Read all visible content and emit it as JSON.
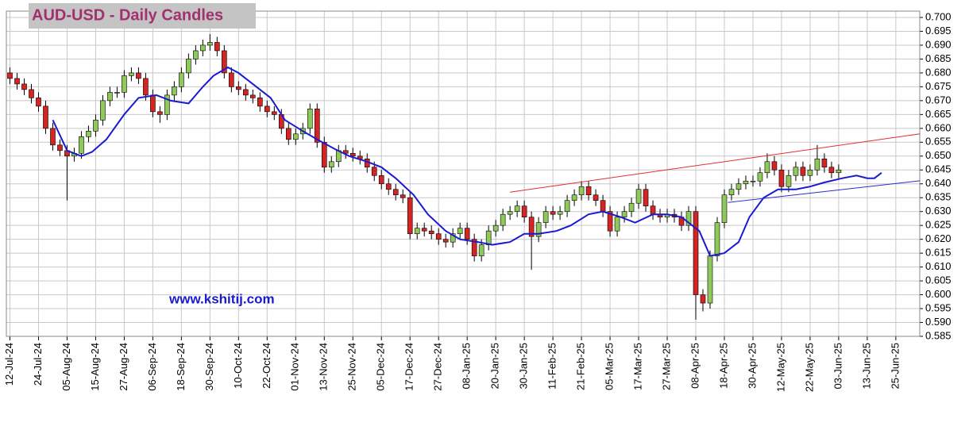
{
  "chart_data": {
    "type": "candlestick",
    "title": "AUD-USD - Daily Candles",
    "annotation": "www.kshitij.com",
    "x": [
      0,
      2,
      4,
      6,
      8,
      10,
      12,
      14,
      16,
      18,
      20,
      22,
      24,
      26,
      28,
      30,
      32,
      34,
      36,
      38,
      40,
      42,
      44,
      46,
      48,
      50,
      52,
      54,
      56,
      58,
      60,
      62,
      64,
      66,
      68,
      70,
      72,
      74,
      76,
      78,
      80,
      82,
      84,
      86,
      88,
      90,
      92,
      94,
      96,
      98,
      100,
      102,
      104,
      106,
      108,
      110,
      112,
      114,
      116,
      118,
      120,
      122,
      124,
      126,
      128,
      130,
      132,
      134,
      136,
      138,
      140,
      142,
      144,
      146,
      148,
      150,
      152,
      154,
      156,
      158,
      160,
      162,
      164,
      166,
      168,
      170,
      172,
      174,
      176,
      178,
      180,
      182,
      184,
      186,
      188,
      190,
      192,
      194,
      196,
      198,
      200,
      202,
      204,
      206,
      208,
      210,
      212,
      214,
      216,
      218,
      220,
      222,
      224,
      226,
      228,
      230,
      232
    ],
    "open": [
      0.68,
      0.678,
      0.676,
      0.674,
      0.671,
      0.668,
      0.66,
      0.654,
      0.652,
      0.65,
      0.651,
      0.657,
      0.659,
      0.663,
      0.67,
      0.673,
      0.673,
      0.679,
      0.68,
      0.678,
      0.672,
      0.666,
      0.665,
      0.672,
      0.675,
      0.68,
      0.685,
      0.688,
      0.69,
      0.691,
      0.688,
      0.68,
      0.675,
      0.674,
      0.672,
      0.671,
      0.668,
      0.666,
      0.665,
      0.66,
      0.656,
      0.658,
      0.66,
      0.667,
      0.655,
      0.646,
      0.648,
      0.652,
      0.651,
      0.65,
      0.649,
      0.646,
      0.643,
      0.64,
      0.638,
      0.636,
      0.635,
      0.622,
      0.624,
      0.623,
      0.622,
      0.62,
      0.619,
      0.622,
      0.624,
      0.62,
      0.614,
      0.618,
      0.623,
      0.625,
      0.629,
      0.63,
      0.632,
      0.628,
      0.621,
      0.626,
      0.63,
      0.629,
      0.63,
      0.634,
      0.636,
      0.639,
      0.636,
      0.634,
      0.63,
      0.623,
      0.628,
      0.63,
      0.633,
      0.638,
      0.632,
      0.629,
      0.628,
      0.629,
      0.628,
      0.625,
      0.63,
      0.6,
      0.597,
      0.614,
      0.626,
      0.636,
      0.638,
      0.64,
      0.641,
      0.641,
      0.644,
      0.648,
      0.645,
      0.639,
      0.643,
      0.646,
      0.643,
      0.645,
      0.649,
      0.646,
      0.644
    ],
    "high": [
      0.682,
      0.68,
      0.678,
      0.676,
      0.673,
      0.67,
      0.662,
      0.656,
      0.654,
      0.653,
      0.659,
      0.661,
      0.665,
      0.672,
      0.675,
      0.675,
      0.681,
      0.682,
      0.682,
      0.68,
      0.674,
      0.668,
      0.674,
      0.677,
      0.682,
      0.687,
      0.69,
      0.692,
      0.694,
      0.693,
      0.69,
      0.682,
      0.677,
      0.676,
      0.674,
      0.673,
      0.67,
      0.668,
      0.667,
      0.662,
      0.66,
      0.662,
      0.669,
      0.669,
      0.657,
      0.65,
      0.654,
      0.654,
      0.653,
      0.652,
      0.651,
      0.648,
      0.645,
      0.642,
      0.64,
      0.638,
      0.637,
      0.626,
      0.626,
      0.625,
      0.624,
      0.622,
      0.624,
      0.626,
      0.626,
      0.622,
      0.62,
      0.625,
      0.627,
      0.631,
      0.632,
      0.634,
      0.634,
      0.63,
      0.628,
      0.632,
      0.632,
      0.632,
      0.636,
      0.638,
      0.641,
      0.641,
      0.638,
      0.636,
      0.632,
      0.63,
      0.632,
      0.635,
      0.64,
      0.64,
      0.634,
      0.631,
      0.631,
      0.631,
      0.63,
      0.632,
      0.632,
      0.602,
      0.616,
      0.628,
      0.638,
      0.64,
      0.642,
      0.643,
      0.643,
      0.646,
      0.651,
      0.65,
      0.647,
      0.645,
      0.648,
      0.648,
      0.647,
      0.654,
      0.651,
      0.648,
      0.647
    ],
    "low": [
      0.676,
      0.674,
      0.672,
      0.669,
      0.666,
      0.658,
      0.652,
      0.65,
      0.634,
      0.648,
      0.649,
      0.655,
      0.657,
      0.661,
      0.668,
      0.671,
      0.671,
      0.677,
      0.676,
      0.67,
      0.664,
      0.662,
      0.663,
      0.67,
      0.673,
      0.678,
      0.683,
      0.686,
      0.688,
      0.686,
      0.678,
      0.673,
      0.672,
      0.67,
      0.669,
      0.666,
      0.664,
      0.663,
      0.658,
      0.654,
      0.654,
      0.656,
      0.658,
      0.653,
      0.644,
      0.644,
      0.646,
      0.649,
      0.648,
      0.647,
      0.644,
      0.641,
      0.638,
      0.636,
      0.634,
      0.633,
      0.62,
      0.62,
      0.621,
      0.62,
      0.618,
      0.617,
      0.617,
      0.62,
      0.618,
      0.612,
      0.612,
      0.616,
      0.621,
      0.623,
      0.627,
      0.628,
      0.626,
      0.609,
      0.619,
      0.624,
      0.627,
      0.627,
      0.628,
      0.632,
      0.634,
      0.634,
      0.632,
      0.628,
      0.621,
      0.621,
      0.626,
      0.628,
      0.631,
      0.63,
      0.627,
      0.626,
      0.626,
      0.626,
      0.623,
      0.623,
      0.591,
      0.594,
      0.595,
      0.612,
      0.624,
      0.634,
      0.636,
      0.638,
      0.639,
      0.639,
      0.642,
      0.643,
      0.637,
      0.637,
      0.641,
      0.641,
      0.641,
      0.643,
      0.644,
      0.642,
      0.642
    ],
    "close": [
      0.678,
      0.676,
      0.674,
      0.671,
      0.668,
      0.66,
      0.654,
      0.652,
      0.65,
      0.651,
      0.657,
      0.659,
      0.663,
      0.67,
      0.673,
      0.673,
      0.679,
      0.68,
      0.678,
      0.672,
      0.666,
      0.665,
      0.672,
      0.675,
      0.68,
      0.685,
      0.688,
      0.69,
      0.691,
      0.688,
      0.68,
      0.675,
      0.674,
      0.672,
      0.671,
      0.668,
      0.666,
      0.665,
      0.66,
      0.656,
      0.658,
      0.66,
      0.667,
      0.655,
      0.646,
      0.648,
      0.652,
      0.651,
      0.65,
      0.649,
      0.646,
      0.643,
      0.64,
      0.638,
      0.636,
      0.635,
      0.622,
      0.624,
      0.623,
      0.622,
      0.62,
      0.619,
      0.622,
      0.624,
      0.62,
      0.614,
      0.618,
      0.623,
      0.625,
      0.629,
      0.63,
      0.632,
      0.628,
      0.621,
      0.626,
      0.63,
      0.629,
      0.63,
      0.634,
      0.636,
      0.639,
      0.636,
      0.634,
      0.63,
      0.623,
      0.628,
      0.63,
      0.633,
      0.638,
      0.632,
      0.629,
      0.628,
      0.629,
      0.628,
      0.625,
      0.63,
      0.6,
      0.597,
      0.614,
      0.626,
      0.636,
      0.638,
      0.64,
      0.641,
      0.641,
      0.644,
      0.648,
      0.645,
      0.639,
      0.643,
      0.646,
      0.643,
      0.645,
      0.649,
      0.646,
      0.644,
      0.645
    ],
    "up_color": "#8fc95a",
    "down_color": "#d42424",
    "lines": [
      {
        "color": "#1a1ad0",
        "x": [
          12,
          16,
          20,
          23,
          27,
          32,
          36,
          41,
          45,
          50,
          54,
          57,
          61,
          64,
          68,
          73,
          77,
          82,
          86,
          91,
          95,
          100,
          104,
          108,
          113,
          117,
          122,
          126,
          131,
          135,
          140,
          144,
          148,
          153,
          157,
          162,
          166,
          171,
          175,
          180,
          184,
          188,
          193,
          196,
          200,
          204,
          207,
          211,
          215,
          220,
          224,
          228,
          233,
          237,
          240,
          242,
          244
        ],
        "values": [
          0.663,
          0.652,
          0.65,
          0.6515,
          0.656,
          0.665,
          0.671,
          0.672,
          0.67,
          0.669,
          0.675,
          0.679,
          0.682,
          0.68,
          0.676,
          0.671,
          0.663,
          0.659,
          0.656,
          0.6525,
          0.65,
          0.648,
          0.646,
          0.642,
          0.636,
          0.629,
          0.623,
          0.62,
          0.619,
          0.618,
          0.619,
          0.622,
          0.622,
          0.623,
          0.625,
          0.629,
          0.63,
          0.628,
          0.626,
          0.629,
          0.629,
          0.628,
          0.623,
          0.614,
          0.615,
          0.619,
          0.628,
          0.635,
          0.638,
          0.638,
          0.639,
          0.6405,
          0.642,
          0.643,
          0.642,
          0.642,
          0.644
        ]
      },
      {
        "color": "#e03030",
        "x": [
          140,
          254.7
        ],
        "values": [
          0.637,
          0.658
        ]
      },
      {
        "color": "#2a2ad0",
        "x": [
          201,
          254.7
        ],
        "values": [
          0.6333,
          0.6411
        ]
      }
    ],
    "xlim": [
      -1,
      254.7
    ],
    "xticks": [
      {
        "value": 0,
        "label": "12-Jul-24"
      },
      {
        "value": 8,
        "label": "24-Jul-24"
      },
      {
        "value": 16,
        "label": "05-Aug-24"
      },
      {
        "value": 24,
        "label": "15-Aug-24"
      },
      {
        "value": 32,
        "label": "27-Aug-24"
      },
      {
        "value": 40,
        "label": "06-Sep-24"
      },
      {
        "value": 48,
        "label": "18-Sep-24"
      },
      {
        "value": 56,
        "label": "30-Sep-24"
      },
      {
        "value": 64,
        "label": "10-Oct-24"
      },
      {
        "value": 72,
        "label": "22-Oct-24"
      },
      {
        "value": 80,
        "label": "01-Nov-24"
      },
      {
        "value": 88,
        "label": "13-Nov-24"
      },
      {
        "value": 96,
        "label": "25-Nov-24"
      },
      {
        "value": 104,
        "label": "05-Dec-24"
      },
      {
        "value": 112,
        "label": "17-Dec-24"
      },
      {
        "value": 120,
        "label": "27-Dec-24"
      },
      {
        "value": 128,
        "label": "08-Jan-25"
      },
      {
        "value": 136,
        "label": "20-Jan-25"
      },
      {
        "value": 144,
        "label": "30-Jan-25"
      },
      {
        "value": 152,
        "label": "11-Feb-25"
      },
      {
        "value": 160,
        "label": "21-Feb-25"
      },
      {
        "value": 168,
        "label": "05-Mar-25"
      },
      {
        "value": 176,
        "label": "17-Mar-25"
      },
      {
        "value": 184,
        "label": "27-Mar-25"
      },
      {
        "value": 192,
        "label": "08-Apr-25"
      },
      {
        "value": 200,
        "label": "18-Apr-25"
      },
      {
        "value": 208,
        "label": "30-Apr-25"
      },
      {
        "value": 216,
        "label": "12-May-25"
      },
      {
        "value": 224,
        "label": "22-May-25"
      },
      {
        "value": 232,
        "label": "03-Jun-25"
      },
      {
        "value": 240,
        "label": "13-Jun-25"
      },
      {
        "value": 248,
        "label": "25-Jun-25"
      }
    ],
    "ylim": [
      0.585,
      0.7
    ],
    "yticks": [
      0.585,
      {
        "value": 0.59,
        "label": "0.590"
      },
      0.595,
      {
        "value": 0.6,
        "label": "0.600"
      },
      0.605,
      {
        "value": 0.61,
        "label": "0.610"
      },
      0.615,
      {
        "value": 0.62,
        "label": "0.620"
      },
      0.625,
      {
        "value": 0.63,
        "label": "0.630"
      },
      0.635,
      {
        "value": 0.64,
        "label": "0.640"
      },
      0.645,
      {
        "value": 0.65,
        "label": "0.650"
      },
      0.655,
      {
        "value": 0.66,
        "label": "0.660"
      },
      0.665,
      {
        "value": 0.67,
        "label": "0.670"
      },
      0.675,
      {
        "value": 0.68,
        "label": "0.680"
      },
      0.685,
      {
        "value": 0.69,
        "label": "0.690"
      },
      0.695,
      {
        "value": 0.7,
        "label": "0.700"
      }
    ],
    "grid": true
  }
}
